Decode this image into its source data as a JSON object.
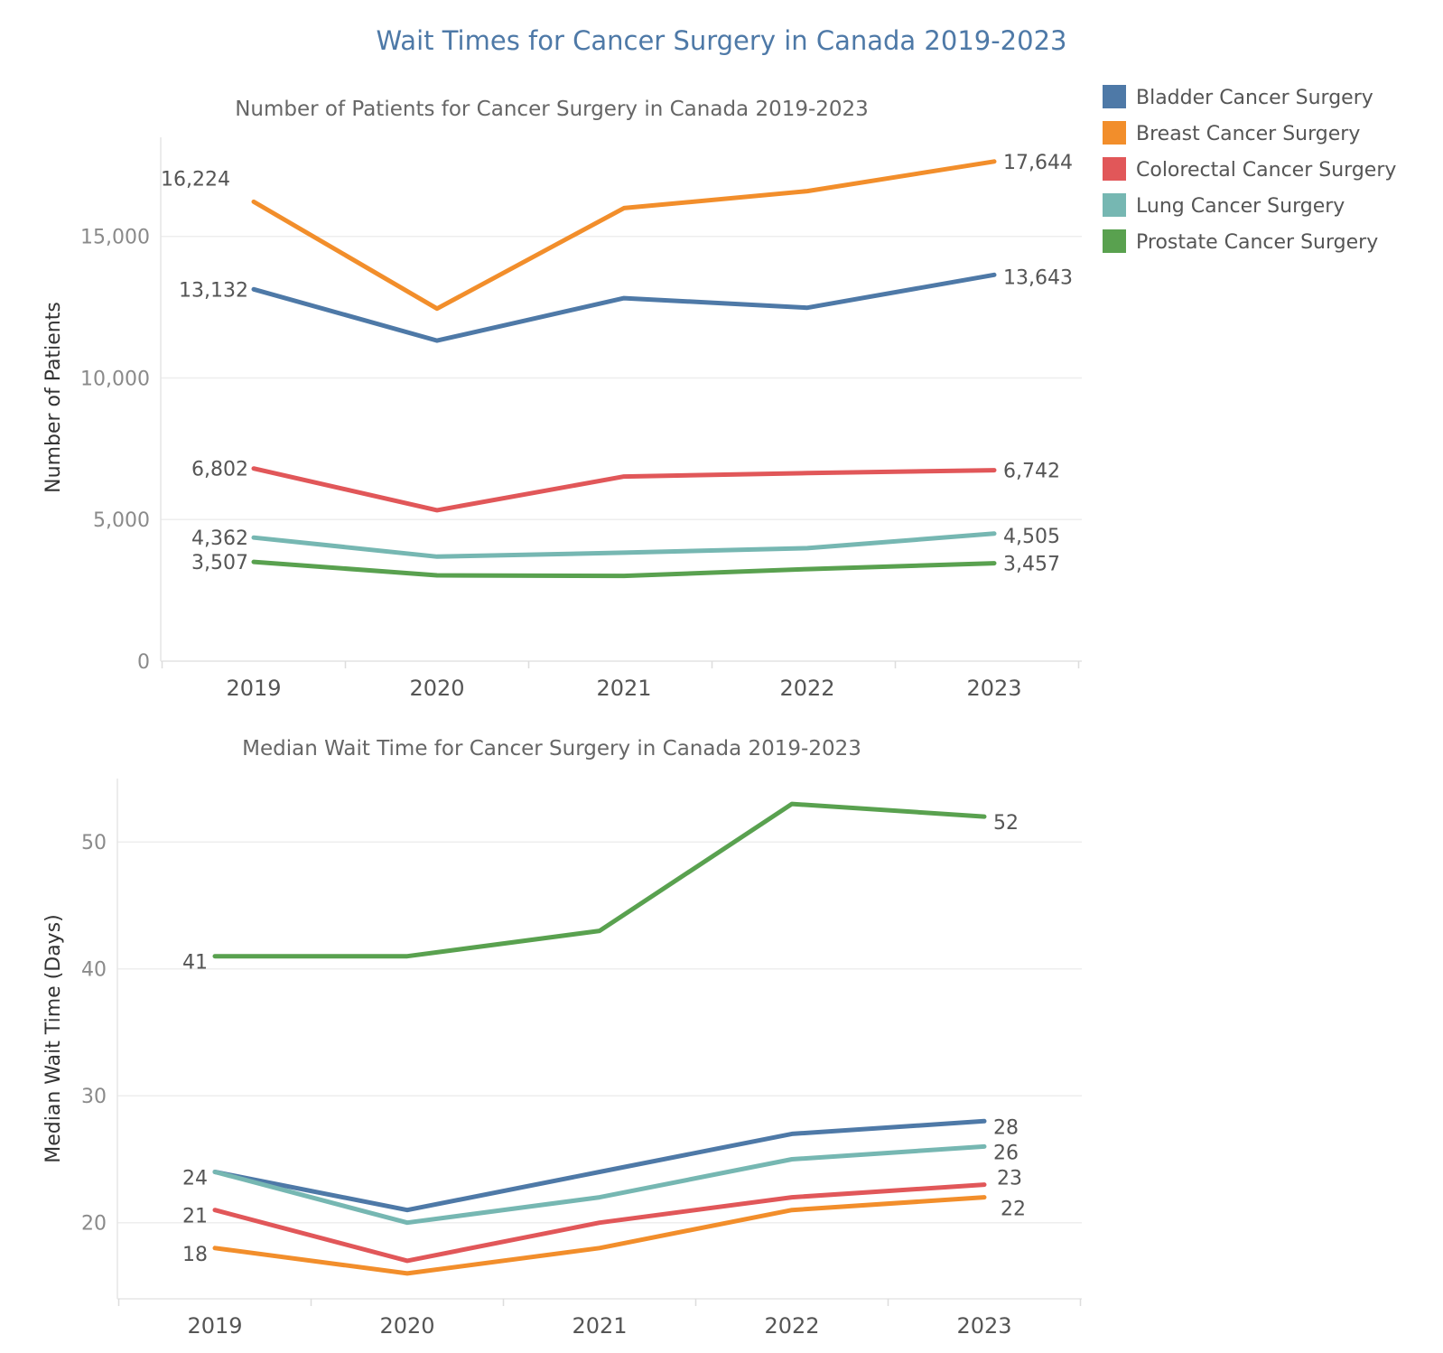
{
  "title": "Wait Times for Cancer Surgery in Canada 2019-2023",
  "legend": [
    {
      "label": "Bladder Cancer Surgery",
      "color": "#4e79a7"
    },
    {
      "label": "Breast Cancer Surgery",
      "color": "#f28e2b"
    },
    {
      "label": "Colorectal Cancer Surgery",
      "color": "#e15759"
    },
    {
      "label": "Lung Cancer Surgery",
      "color": "#76b7b2"
    },
    {
      "label": "Prostate Cancer Surgery",
      "color": "#59a14f"
    }
  ],
  "chart_data": [
    {
      "type": "line",
      "title": "Number of Patients for Cancer Surgery in Canada 2019-2023",
      "xlabel": "",
      "ylabel": "Number of Patients",
      "x": [
        "2019",
        "2020",
        "2021",
        "2022",
        "2023"
      ],
      "ylim": [
        0,
        18500
      ],
      "yticks": [
        0,
        5000,
        10000,
        15000
      ],
      "ytick_labels": [
        "0",
        "5,000",
        "10,000",
        "15,000"
      ],
      "grid": true,
      "series": [
        {
          "name": "Breast Cancer Surgery",
          "color": "#f28e2b",
          "values": [
            16224,
            12450,
            16000,
            16600,
            17644
          ],
          "labels": [
            "16,224",
            "",
            "",
            "",
            "17,644"
          ]
        },
        {
          "name": "Bladder Cancer Surgery",
          "color": "#4e79a7",
          "values": [
            13132,
            11320,
            12820,
            12480,
            13643
          ],
          "labels": [
            "13,132",
            "",
            "",
            "",
            "13,643"
          ]
        },
        {
          "name": "Colorectal Cancer Surgery",
          "color": "#e15759",
          "values": [
            6802,
            5330,
            6520,
            6640,
            6742
          ],
          "labels": [
            "6,802",
            "",
            "",
            "",
            "6,742"
          ]
        },
        {
          "name": "Lung Cancer Surgery",
          "color": "#76b7b2",
          "values": [
            4362,
            3690,
            3830,
            3990,
            4505
          ],
          "labels": [
            "4,362",
            "",
            "",
            "",
            "4,505"
          ]
        },
        {
          "name": "Prostate Cancer Surgery",
          "color": "#59a14f",
          "values": [
            3507,
            3030,
            3010,
            3250,
            3457
          ],
          "labels": [
            "3,507",
            "",
            "",
            "",
            "3,457"
          ]
        }
      ]
    },
    {
      "type": "line",
      "title": "Median Wait Time for Cancer Surgery in Canada 2019-2023",
      "xlabel": "",
      "ylabel": "Median Wait Time (Days)",
      "x": [
        "2019",
        "2020",
        "2021",
        "2022",
        "2023"
      ],
      "ylim": [
        14,
        55
      ],
      "yticks": [
        20,
        30,
        40,
        50
      ],
      "ytick_labels": [
        "20",
        "30",
        "40",
        "50"
      ],
      "grid": true,
      "series": [
        {
          "name": "Prostate Cancer Surgery",
          "color": "#59a14f",
          "values": [
            41,
            41,
            43,
            53,
            52
          ],
          "labels": [
            "41",
            "",
            "",
            "",
            "52"
          ]
        },
        {
          "name": "Bladder Cancer Surgery",
          "color": "#4e79a7",
          "values": [
            24,
            21,
            24,
            27,
            28
          ],
          "labels": [
            "24",
            "",
            "",
            "",
            "28"
          ]
        },
        {
          "name": "Lung Cancer Surgery",
          "color": "#76b7b2",
          "values": [
            24,
            20,
            22,
            25,
            26
          ],
          "labels": [
            "",
            "",
            "",
            "",
            "26"
          ]
        },
        {
          "name": "Colorectal Cancer Surgery",
          "color": "#e15759",
          "values": [
            21,
            17,
            20,
            22,
            23
          ],
          "labels": [
            "21",
            "",
            "",
            "",
            "23"
          ]
        },
        {
          "name": "Breast Cancer Surgery",
          "color": "#f28e2b",
          "values": [
            18,
            16,
            18,
            21,
            22
          ],
          "labels": [
            "18",
            "",
            "",
            "",
            "22"
          ]
        }
      ]
    }
  ]
}
